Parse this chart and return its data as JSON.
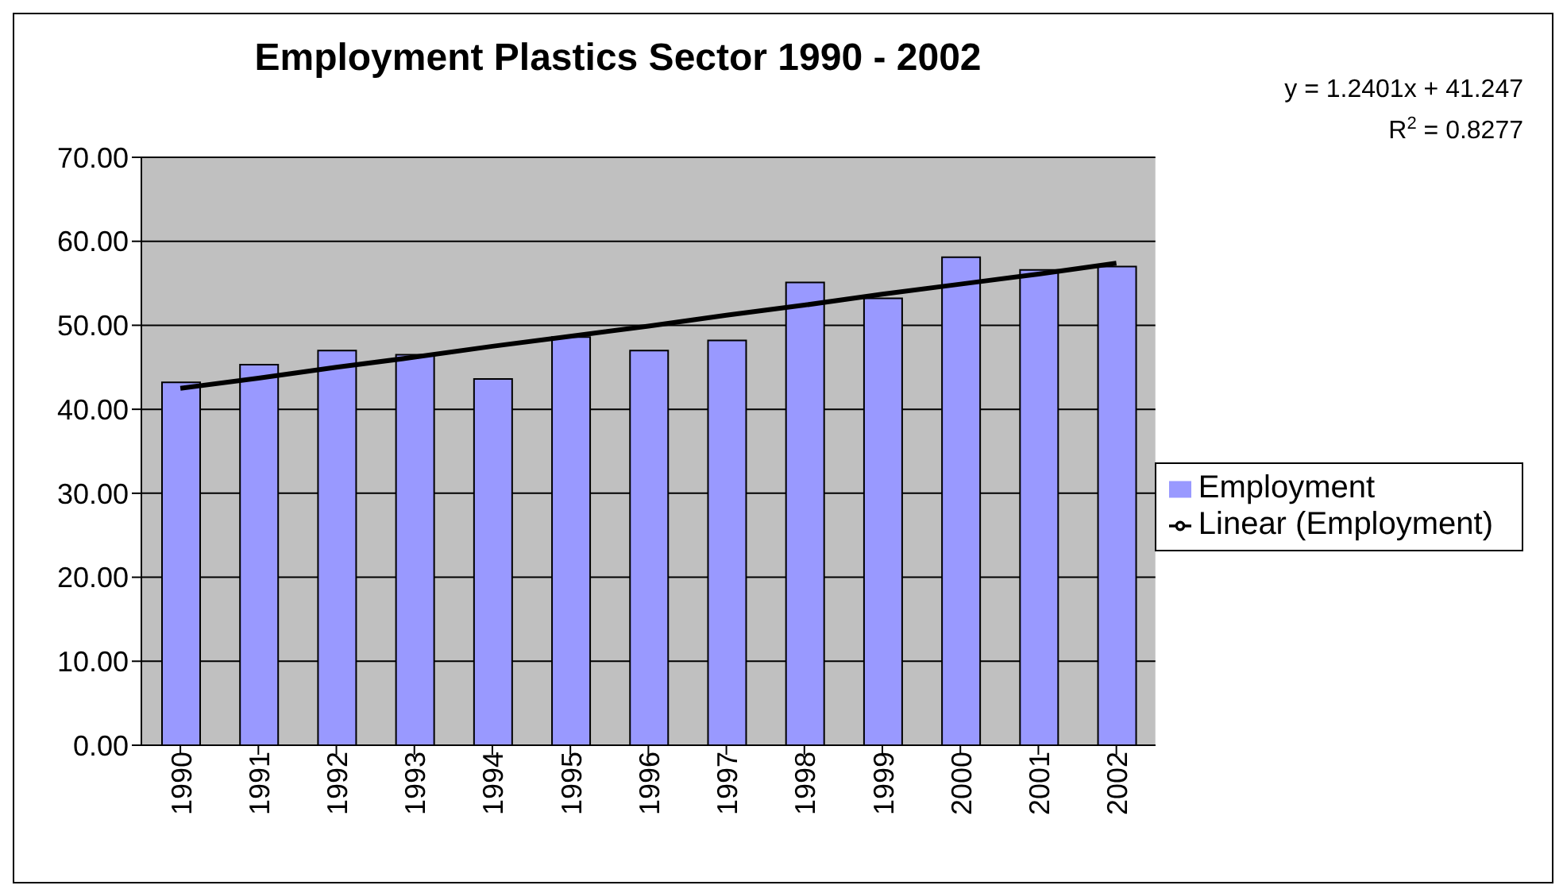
{
  "chart_data": {
    "type": "bar",
    "title": "Employment Plastics Sector 1990 - 2002",
    "categories": [
      "1990",
      "1991",
      "1992",
      "1993",
      "1994",
      "1995",
      "1996",
      "1997",
      "1998",
      "1999",
      "2000",
      "2001",
      "2002"
    ],
    "series": [
      {
        "name": "Employment",
        "color": "#9999ff",
        "values": [
          43.2,
          45.3,
          47.0,
          46.5,
          43.6,
          48.6,
          47.0,
          48.2,
          55.1,
          53.2,
          58.1,
          56.6,
          57.0
        ]
      },
      {
        "name": "Linear (Employment)",
        "type": "line",
        "color": "#000000",
        "values": [
          42.5,
          43.7,
          45.0,
          46.2,
          47.5,
          48.7,
          49.9,
          51.2,
          52.4,
          53.7,
          54.9,
          56.1,
          57.4
        ]
      }
    ],
    "ylim": [
      0,
      70
    ],
    "yticks": [
      {
        "value": 0,
        "label": "0.00"
      },
      {
        "value": 10,
        "label": "10.00"
      },
      {
        "value": 20,
        "label": "20.00"
      },
      {
        "value": 30,
        "label": "30.00"
      },
      {
        "value": 40,
        "label": "40.00"
      },
      {
        "value": 50,
        "label": "50.00"
      },
      {
        "value": 60,
        "label": "60.00"
      },
      {
        "value": 70,
        "label": "70.00"
      }
    ],
    "grid": "y",
    "legend": "right",
    "marker": "none",
    "line_style": "solid",
    "annotations": [
      "y = 1.2401x + 41.247",
      "R$^{2}$ = 0.8277"
    ]
  }
}
